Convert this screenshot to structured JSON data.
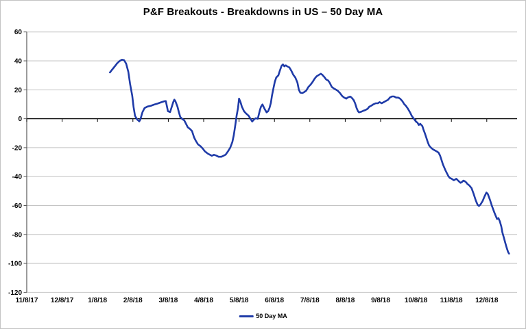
{
  "title": "P&F Breakouts - Breakdowns in US – 50 Day MA",
  "legend": {
    "label": "50 Day MA"
  },
  "colors": {
    "line": "#1f3ba8",
    "zero_line": "#000000",
    "gridline": "#c4c4c4",
    "axis": "#595959",
    "tick_text": "#000000",
    "border": "#c3c3c3",
    "background": "#ffffff"
  },
  "chart_data": {
    "type": "line",
    "title": "P&F Breakouts - Breakdowns in US – 50 Day MA",
    "x_axis": {
      "tick_labels": [
        "11/8/17",
        "12/8/17",
        "1/8/18",
        "2/8/18",
        "3/8/18",
        "4/8/18",
        "5/8/18",
        "6/8/18",
        "7/8/18",
        "8/8/18",
        "9/8/18",
        "10/8/18",
        "11/8/18",
        "12/8/18"
      ],
      "unit": "month index: 0 = 11/8/17 tick, 1 unit per labeled tick; data runs from ~2.35 (late Jan 2018) to ~13.63 (late Dec 2018)"
    },
    "y_axis": {
      "ticks": [
        60,
        40,
        20,
        0,
        -20,
        -40,
        -60,
        -80,
        -100,
        -120
      ],
      "lim": [
        -120,
        60
      ]
    },
    "grid": "horizontal gridlines every 20 units; heavy black line at y=0",
    "legend": {
      "entries": [
        "50 Day MA"
      ],
      "position": "bottom-center"
    },
    "series": [
      {
        "name": "50 Day MA",
        "color": "#1f3ba8",
        "points": [
          [
            2.35,
            32
          ],
          [
            2.4,
            33.5
          ],
          [
            2.48,
            36
          ],
          [
            2.56,
            38.5
          ],
          [
            2.63,
            40
          ],
          [
            2.69,
            40.8
          ],
          [
            2.75,
            40.5
          ],
          [
            2.81,
            38
          ],
          [
            2.87,
            32.5
          ],
          [
            2.92,
            24
          ],
          [
            2.98,
            16
          ],
          [
            3.02,
            8
          ],
          [
            3.06,
            2
          ],
          [
            3.12,
            -0.5
          ],
          [
            3.18,
            -1.8
          ],
          [
            3.21,
            -0.5
          ],
          [
            3.27,
            4.5
          ],
          [
            3.33,
            7.4
          ],
          [
            3.41,
            8.4
          ],
          [
            3.51,
            9
          ],
          [
            3.6,
            9.8
          ],
          [
            3.7,
            10.5
          ],
          [
            3.8,
            11.4
          ],
          [
            3.89,
            12.1
          ],
          [
            3.93,
            12.2
          ],
          [
            3.99,
            5.2
          ],
          [
            4.05,
            4.6
          ],
          [
            4.11,
            9.2
          ],
          [
            4.14,
            11.5
          ],
          [
            4.17,
            13.2
          ],
          [
            4.2,
            12.2
          ],
          [
            4.26,
            8.3
          ],
          [
            4.3,
            4.4
          ],
          [
            4.34,
            1.2
          ],
          [
            4.4,
            -0.3
          ],
          [
            4.45,
            -1.1
          ],
          [
            4.49,
            -3
          ],
          [
            4.55,
            -5.9
          ],
          [
            4.61,
            -7
          ],
          [
            4.67,
            -8.5
          ],
          [
            4.73,
            -13
          ],
          [
            4.78,
            -15.3
          ],
          [
            4.84,
            -17.7
          ],
          [
            4.92,
            -19.2
          ],
          [
            4.98,
            -20.8
          ],
          [
            5.03,
            -22.4
          ],
          [
            5.11,
            -24
          ],
          [
            5.17,
            -24.8
          ],
          [
            5.23,
            -25.6
          ],
          [
            5.29,
            -24.9
          ],
          [
            5.35,
            -25.4
          ],
          [
            5.42,
            -26.3
          ],
          [
            5.5,
            -26.3
          ],
          [
            5.56,
            -25.6
          ],
          [
            5.62,
            -24.8
          ],
          [
            5.69,
            -22.4
          ],
          [
            5.75,
            -20
          ],
          [
            5.81,
            -16.1
          ],
          [
            5.85,
            -11.4
          ],
          [
            5.89,
            -5.1
          ],
          [
            5.93,
            2
          ],
          [
            5.97,
            7.5
          ],
          [
            6.0,
            13.9
          ],
          [
            6.04,
            11.5
          ],
          [
            6.08,
            8.3
          ],
          [
            6.14,
            5.2
          ],
          [
            6.2,
            3.6
          ],
          [
            6.27,
            2.1
          ],
          [
            6.33,
            -0.3
          ],
          [
            6.37,
            -1.9
          ],
          [
            6.43,
            -0.3
          ],
          [
            6.47,
            0.4
          ],
          [
            6.53,
            0
          ],
          [
            6.59,
            6
          ],
          [
            6.62,
            8.3
          ],
          [
            6.66,
            9.9
          ],
          [
            6.72,
            6.8
          ],
          [
            6.78,
            4.4
          ],
          [
            6.82,
            5.2
          ],
          [
            6.86,
            7.5
          ],
          [
            6.9,
            11
          ],
          [
            6.93,
            16
          ],
          [
            6.97,
            21
          ],
          [
            7.01,
            25.5
          ],
          [
            7.05,
            28.5
          ],
          [
            7.11,
            30
          ],
          [
            7.15,
            33
          ],
          [
            7.2,
            36.5
          ],
          [
            7.24,
            37.6
          ],
          [
            7.28,
            36.2
          ],
          [
            7.32,
            36.9
          ],
          [
            7.36,
            36.2
          ],
          [
            7.42,
            35.5
          ],
          [
            7.48,
            33
          ],
          [
            7.53,
            30.5
          ],
          [
            7.59,
            28.5
          ],
          [
            7.65,
            25
          ],
          [
            7.69,
            20
          ],
          [
            7.73,
            18
          ],
          [
            7.79,
            17.8
          ],
          [
            7.84,
            18.4
          ],
          [
            7.9,
            19.5
          ],
          [
            7.96,
            22
          ],
          [
            8.02,
            23.5
          ],
          [
            8.08,
            25.5
          ],
          [
            8.13,
            27.5
          ],
          [
            8.19,
            29.3
          ],
          [
            8.25,
            30.2
          ],
          [
            8.31,
            31.1
          ],
          [
            8.35,
            30.4
          ],
          [
            8.41,
            28.8
          ],
          [
            8.46,
            27.2
          ],
          [
            8.52,
            26.4
          ],
          [
            8.56,
            24.9
          ],
          [
            8.62,
            22
          ],
          [
            8.68,
            20.9
          ],
          [
            8.74,
            20.1
          ],
          [
            8.79,
            19.3
          ],
          [
            8.85,
            17.8
          ],
          [
            8.91,
            15.8
          ],
          [
            8.97,
            14.6
          ],
          [
            9.03,
            13.9
          ],
          [
            9.08,
            14.8
          ],
          [
            9.14,
            15.3
          ],
          [
            9.18,
            14.6
          ],
          [
            9.24,
            12.8
          ],
          [
            9.28,
            10.7
          ],
          [
            9.32,
            7.5
          ],
          [
            9.36,
            5.2
          ],
          [
            9.39,
            4.4
          ],
          [
            9.45,
            4.8
          ],
          [
            9.51,
            5.5
          ],
          [
            9.57,
            6
          ],
          [
            9.63,
            6.8
          ],
          [
            9.68,
            8.3
          ],
          [
            9.74,
            9.1
          ],
          [
            9.8,
            10
          ],
          [
            9.86,
            10.7
          ],
          [
            9.92,
            10.7
          ],
          [
            9.97,
            11.5
          ],
          [
            10.03,
            10.7
          ],
          [
            10.09,
            11.5
          ],
          [
            10.15,
            12.3
          ],
          [
            10.21,
            13.1
          ],
          [
            10.26,
            14.6
          ],
          [
            10.32,
            15.4
          ],
          [
            10.38,
            15.4
          ],
          [
            10.44,
            14.6
          ],
          [
            10.5,
            14.6
          ],
          [
            10.55,
            13.9
          ],
          [
            10.61,
            12.3
          ],
          [
            10.67,
            10
          ],
          [
            10.71,
            9.1
          ],
          [
            10.77,
            7
          ],
          [
            10.83,
            4.5
          ],
          [
            10.88,
            2
          ],
          [
            10.94,
            0
          ],
          [
            11.0,
            -2
          ],
          [
            11.04,
            -2.7
          ],
          [
            11.08,
            -4.3
          ],
          [
            11.12,
            -3.5
          ],
          [
            11.18,
            -5.1
          ],
          [
            11.21,
            -7.4
          ],
          [
            11.25,
            -10
          ],
          [
            11.29,
            -13
          ],
          [
            11.33,
            -16
          ],
          [
            11.37,
            -18.5
          ],
          [
            11.43,
            -20.2
          ],
          [
            11.48,
            -21.2
          ],
          [
            11.54,
            -22
          ],
          [
            11.6,
            -22.8
          ],
          [
            11.64,
            -23.5
          ],
          [
            11.68,
            -25.5
          ],
          [
            11.72,
            -28.5
          ],
          [
            11.76,
            -31.5
          ],
          [
            11.8,
            -33.8
          ],
          [
            11.83,
            -35.5
          ],
          [
            11.87,
            -37.5
          ],
          [
            11.91,
            -39.5
          ],
          [
            11.95,
            -40.8
          ],
          [
            12.01,
            -41.5
          ],
          [
            12.07,
            -42.5
          ],
          [
            12.1,
            -42.1
          ],
          [
            12.14,
            -41.5
          ],
          [
            12.18,
            -42.5
          ],
          [
            12.22,
            -43.5
          ],
          [
            12.26,
            -44.3
          ],
          [
            12.3,
            -43.7
          ],
          [
            12.34,
            -42.8
          ],
          [
            12.38,
            -43.2
          ],
          [
            12.42,
            -44
          ],
          [
            12.45,
            -45
          ],
          [
            12.51,
            -46.2
          ],
          [
            12.57,
            -48
          ],
          [
            12.63,
            -52
          ],
          [
            12.69,
            -56.5
          ],
          [
            12.74,
            -59.5
          ],
          [
            12.78,
            -60.3
          ],
          [
            12.82,
            -59.4
          ],
          [
            12.88,
            -57
          ],
          [
            12.94,
            -53.5
          ],
          [
            12.99,
            -51
          ],
          [
            13.03,
            -52
          ],
          [
            13.09,
            -56
          ],
          [
            13.15,
            -60.5
          ],
          [
            13.21,
            -64.5
          ],
          [
            13.25,
            -67
          ],
          [
            13.29,
            -69.3
          ],
          [
            13.33,
            -68.7
          ],
          [
            13.37,
            -71
          ],
          [
            13.41,
            -74.5
          ],
          [
            13.44,
            -78.5
          ],
          [
            13.48,
            -82
          ],
          [
            13.52,
            -85.5
          ],
          [
            13.56,
            -89
          ],
          [
            13.6,
            -92
          ],
          [
            13.63,
            -93.3
          ]
        ]
      }
    ]
  }
}
